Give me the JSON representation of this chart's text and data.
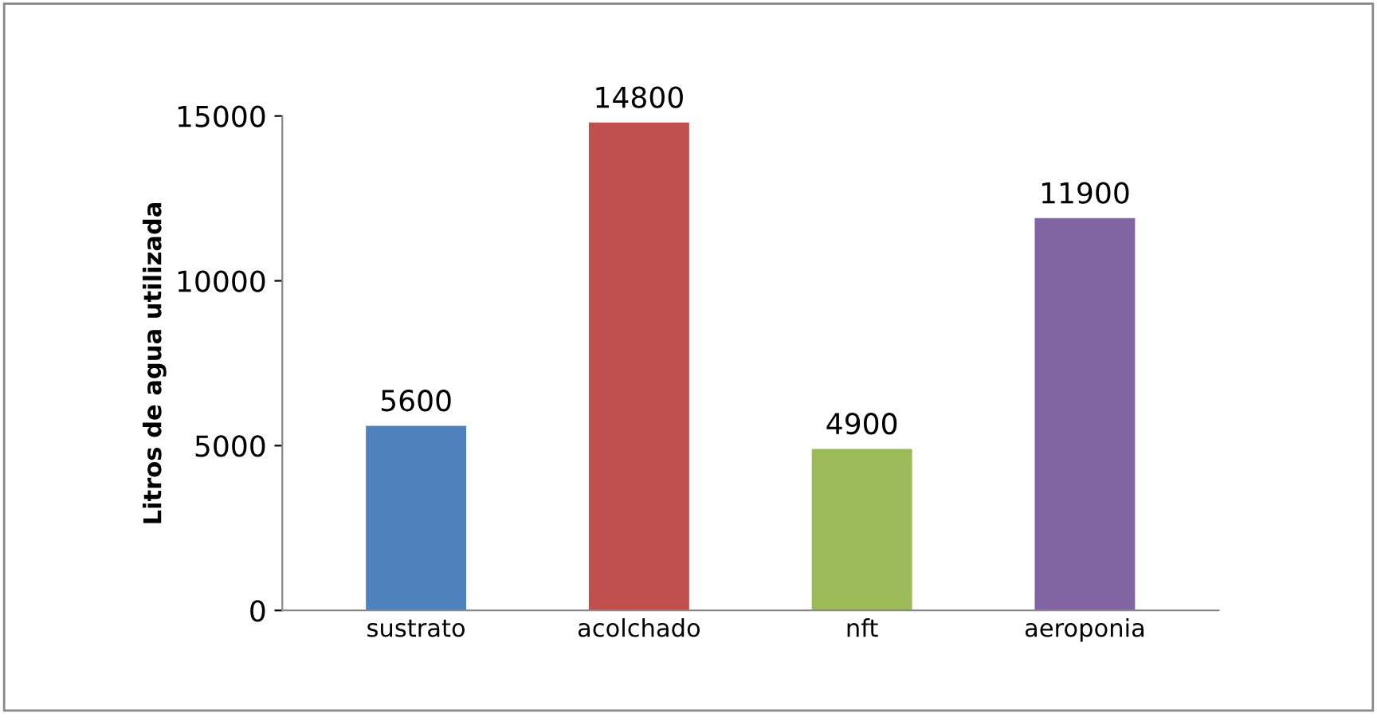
{
  "chart_data": {
    "type": "bar",
    "ylabel": "Litros de agua utilizada",
    "categories": [
      "sustrato",
      "acolchado",
      "nft",
      "aeroponia"
    ],
    "values": [
      5600,
      14800,
      4900,
      11900
    ],
    "colors": [
      "#4f81bd",
      "#c0504d",
      "#9bbb59",
      "#8064a2"
    ],
    "ylim": [
      0,
      15000
    ],
    "yticks": [
      0,
      5000,
      10000,
      15000
    ],
    "data_labels": true,
    "grid": false
  }
}
